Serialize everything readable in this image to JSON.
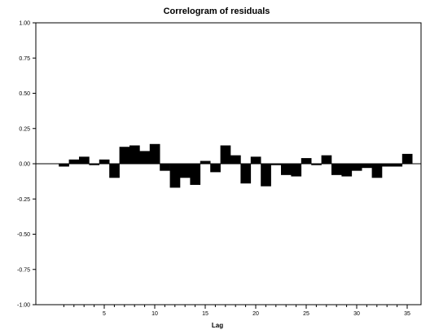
{
  "chart_data": {
    "type": "bar",
    "title": "Correlogram of residuals",
    "xlabel": "Lag",
    "ylabel": "",
    "ylim": [
      -1.0,
      1.0
    ],
    "xlim": [
      0,
      36
    ],
    "grid": false,
    "y_ticks": [
      "1.00",
      "0.75",
      "0.50",
      "0.25",
      "0.00",
      "-0.25",
      "-0.50",
      "-0.75",
      "-1.00"
    ],
    "x_ticks": [
      "5",
      "10",
      "15",
      "20",
      "25",
      "30",
      "35"
    ],
    "x": [
      1,
      2,
      3,
      4,
      5,
      6,
      7,
      8,
      9,
      10,
      11,
      12,
      13,
      14,
      15,
      16,
      17,
      18,
      19,
      20,
      21,
      22,
      23,
      24,
      25,
      26,
      27,
      28,
      29,
      30,
      31,
      32,
      33,
      34,
      35
    ],
    "values": [
      -0.02,
      0.03,
      0.05,
      -0.01,
      0.03,
      -0.1,
      0.12,
      0.13,
      0.09,
      0.14,
      -0.05,
      -0.17,
      -0.1,
      -0.15,
      0.02,
      -0.06,
      0.13,
      0.06,
      -0.14,
      0.05,
      -0.16,
      -0.01,
      -0.08,
      -0.09,
      0.04,
      -0.01,
      0.06,
      -0.08,
      -0.09,
      -0.05,
      -0.03,
      -0.1,
      -0.02,
      -0.02,
      0.07
    ],
    "bar_color": "#000000"
  }
}
